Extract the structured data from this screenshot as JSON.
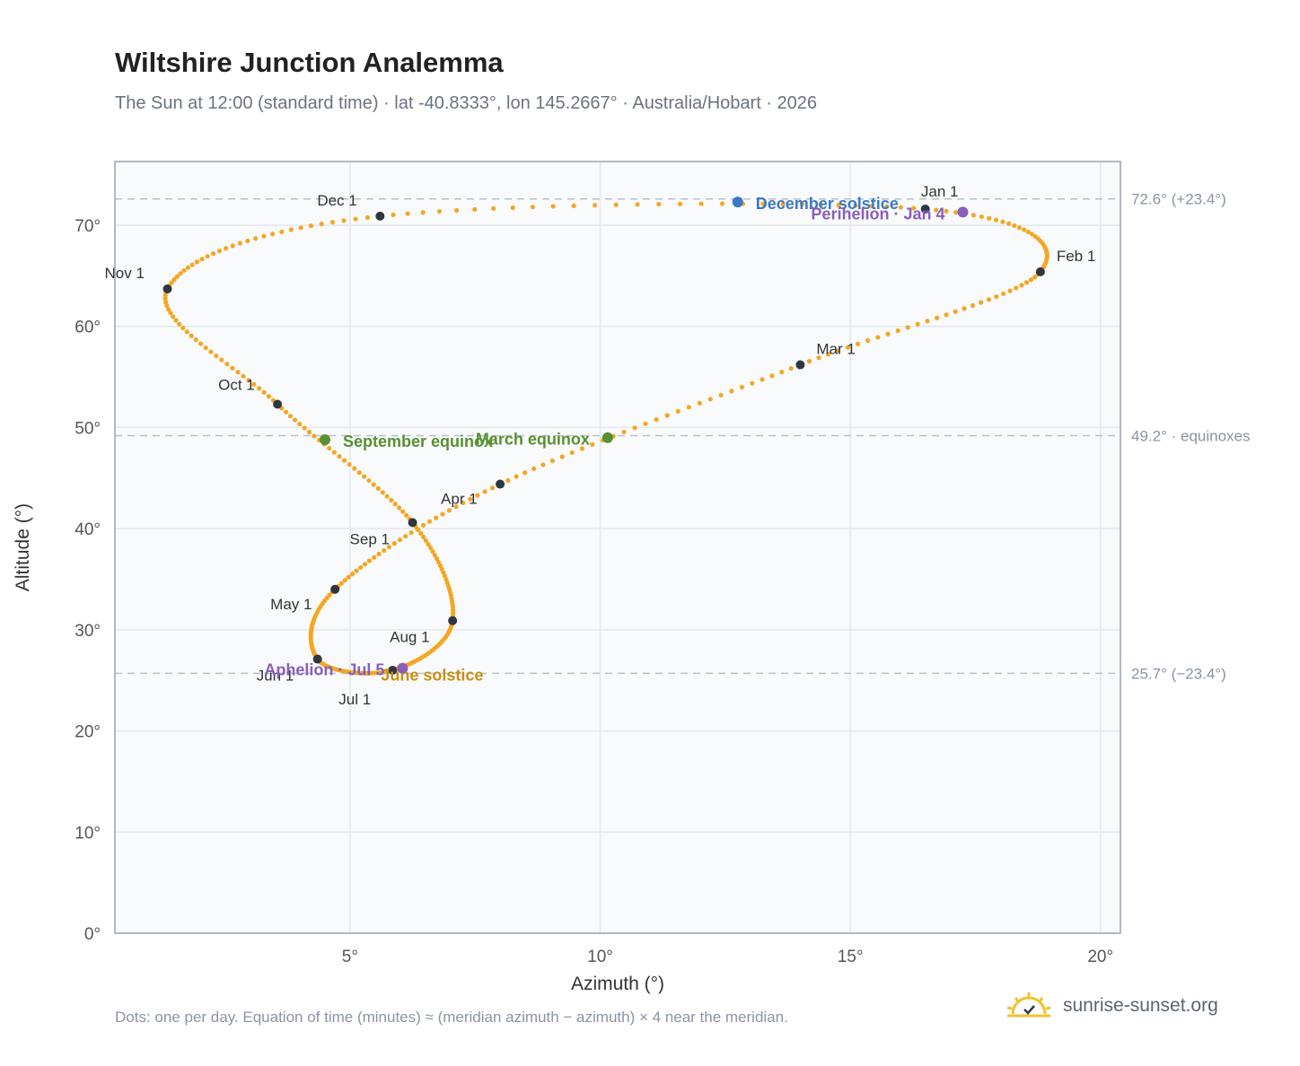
{
  "header": {
    "title": "Wiltshire Junction Analemma",
    "subtitle": "The Sun at 12:00 (standard time) · lat -40.8333°, lon 145.2667° · Australia/Hobart · 2026"
  },
  "footer": {
    "note": "Dots: one per day. Equation of time (minutes) ≈ (meridian azimuth − azimuth) × 4 near the meridian.",
    "brand": "sunrise-sunset.org",
    "brand_icon": "sun-icon"
  },
  "chart_data": {
    "type": "scatter",
    "xlabel": "Azimuth (°)",
    "ylabel": "Altitude (°)",
    "xlim": [
      0.3,
      20.4
    ],
    "ylim": [
      0,
      76.3
    ],
    "xticks": [
      5,
      10,
      15,
      20
    ],
    "yticks": [
      0,
      10,
      20,
      30,
      40,
      50,
      60,
      70
    ],
    "xtick_labels": [
      "5°",
      "10°",
      "15°",
      "20°"
    ],
    "ytick_labels": [
      "0°",
      "10°",
      "20°",
      "30°",
      "40°",
      "50°",
      "60°",
      "70°"
    ],
    "grid": true,
    "reference_lines": [
      {
        "y": 72.6,
        "label": "72.6° (+23.4°)"
      },
      {
        "y": 49.2,
        "label": "49.2° · equinoxes"
      },
      {
        "y": 25.7,
        "label": "25.7° (−23.4°)"
      }
    ],
    "path_color": "#f5a623",
    "month_markers": [
      {
        "label": "Jan 1",
        "x": 16.5,
        "y": 71.6
      },
      {
        "label": "Feb 1",
        "x": 18.8,
        "y": 65.4
      },
      {
        "label": "Mar 1",
        "x": 14.0,
        "y": 56.2
      },
      {
        "label": "Apr 1",
        "x": 8.0,
        "y": 44.4
      },
      {
        "label": "May 1",
        "x": 4.7,
        "y": 34.0
      },
      {
        "label": "Jun 1",
        "x": 4.35,
        "y": 27.1
      },
      {
        "label": "Jul 1",
        "x": 5.85,
        "y": 26.0
      },
      {
        "label": "Aug 1",
        "x": 7.05,
        "y": 30.9
      },
      {
        "label": "Sep 1",
        "x": 6.25,
        "y": 40.6
      },
      {
        "label": "Oct 1",
        "x": 3.55,
        "y": 52.3
      },
      {
        "label": "Nov 1",
        "x": 1.35,
        "y": 63.7
      },
      {
        "label": "Dec 1",
        "x": 5.6,
        "y": 70.9
      }
    ],
    "events": [
      {
        "label": "December solstice",
        "x": 12.75,
        "y": 72.3,
        "color": "#3b78c4"
      },
      {
        "label": "Perihelion · Jan 4",
        "x": 17.25,
        "y": 71.3,
        "color": "#8a5fb8"
      },
      {
        "label": "March equinox",
        "x": 10.15,
        "y": 49.0,
        "color": "#5a8f32"
      },
      {
        "label": "September equinox",
        "x": 4.5,
        "y": 48.8,
        "color": "#5a8f32"
      },
      {
        "label": "June solstice",
        "x": 6.05,
        "y": 26.2,
        "color": "#c99012"
      },
      {
        "label": "Aphelion · Jul 5",
        "x": 6.05,
        "y": 26.2,
        "color": "#8a5fb8"
      }
    ]
  }
}
